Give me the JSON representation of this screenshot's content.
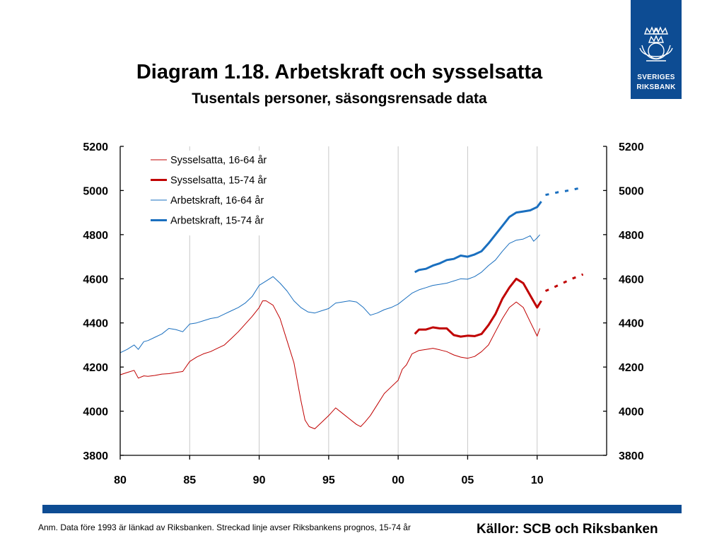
{
  "header": {
    "title": "Diagram 1.18. Arbetskraft och sysselsatta",
    "subtitle": "Tusentals personer, säsongsrensade data"
  },
  "logo": {
    "line1": "SVERIGES",
    "line2": "RIKSBANK"
  },
  "colors": {
    "brand_blue": "#0d4c93",
    "red": "#c00000",
    "blue": "#1a6fbf"
  },
  "footer": {
    "note": "Anm. Data före 1993 är länkad av Riksbanken. Streckad linje avser Riksbankens prognos, 15-74 år",
    "source": "Källor: SCB och Riksbanken"
  },
  "chart_data": {
    "type": "line",
    "title": "Diagram 1.18. Arbetskraft och sysselsatta",
    "subtitle": "Tusentals personer, säsongsrensade data",
    "xlim": [
      1980,
      2015
    ],
    "ylim": [
      3800,
      5200
    ],
    "yticks": [
      3800,
      4000,
      4200,
      4400,
      4600,
      4800,
      5000,
      5200
    ],
    "xticks": [
      {
        "value": 1980,
        "label": "80"
      },
      {
        "value": 1985,
        "label": "85"
      },
      {
        "value": 1990,
        "label": "90"
      },
      {
        "value": 1995,
        "label": "95"
      },
      {
        "value": 2000,
        "label": "00"
      },
      {
        "value": 2005,
        "label": "05"
      },
      {
        "value": 2010,
        "label": "10"
      }
    ],
    "grid": "vertical",
    "legend_position": "top-left",
    "series": [
      {
        "name": "Sysselsatta, 16-64 år",
        "color": "#c00000",
        "width": 1,
        "style": "solid",
        "points": [
          [
            1980,
            4165
          ],
          [
            1980.5,
            4175
          ],
          [
            1981,
            4185
          ],
          [
            1981.3,
            4150
          ],
          [
            1981.7,
            4160
          ],
          [
            1982,
            4158
          ],
          [
            1982.5,
            4162
          ],
          [
            1983,
            4168
          ],
          [
            1983.5,
            4170
          ],
          [
            1984,
            4175
          ],
          [
            1984.5,
            4180
          ],
          [
            1985,
            4225
          ],
          [
            1985.5,
            4245
          ],
          [
            1986,
            4260
          ],
          [
            1986.5,
            4270
          ],
          [
            1987,
            4285
          ],
          [
            1987.5,
            4300
          ],
          [
            1988,
            4330
          ],
          [
            1988.5,
            4360
          ],
          [
            1989,
            4395
          ],
          [
            1989.5,
            4430
          ],
          [
            1990,
            4470
          ],
          [
            1990.25,
            4500
          ],
          [
            1990.5,
            4500
          ],
          [
            1991,
            4480
          ],
          [
            1991.5,
            4420
          ],
          [
            1992,
            4320
          ],
          [
            1992.5,
            4220
          ],
          [
            1993,
            4050
          ],
          [
            1993.3,
            3960
          ],
          [
            1993.6,
            3930
          ],
          [
            1994,
            3920
          ],
          [
            1994.5,
            3950
          ],
          [
            1995,
            3980
          ],
          [
            1995.5,
            4015
          ],
          [
            1996,
            3990
          ],
          [
            1996.5,
            3965
          ],
          [
            1997,
            3940
          ],
          [
            1997.3,
            3930
          ],
          [
            1997.6,
            3950
          ],
          [
            1998,
            3980
          ],
          [
            1998.5,
            4030
          ],
          [
            1999,
            4080
          ],
          [
            1999.5,
            4110
          ],
          [
            2000,
            4140
          ],
          [
            2000.3,
            4190
          ],
          [
            2000.6,
            4210
          ],
          [
            2001,
            4260
          ],
          [
            2001.5,
            4275
          ],
          [
            2002,
            4280
          ],
          [
            2002.5,
            4285
          ],
          [
            2003,
            4278
          ],
          [
            2003.5,
            4270
          ],
          [
            2004,
            4255
          ],
          [
            2004.5,
            4245
          ],
          [
            2005,
            4240
          ],
          [
            2005.5,
            4248
          ],
          [
            2006,
            4270
          ],
          [
            2006.5,
            4300
          ],
          [
            2007,
            4360
          ],
          [
            2007.5,
            4420
          ],
          [
            2008,
            4470
          ],
          [
            2008.5,
            4495
          ],
          [
            2009,
            4470
          ],
          [
            2009.5,
            4405
          ],
          [
            2010,
            4340
          ],
          [
            2010.2,
            4375
          ]
        ]
      },
      {
        "name": "Sysselsatta, 15-74 år",
        "color": "#c00000",
        "width": 3,
        "style": "solid",
        "points": [
          [
            2001.2,
            4350
          ],
          [
            2001.5,
            4370
          ],
          [
            2002,
            4370
          ],
          [
            2002.5,
            4380
          ],
          [
            2003,
            4375
          ],
          [
            2003.5,
            4375
          ],
          [
            2004,
            4345
          ],
          [
            2004.5,
            4338
          ],
          [
            2005,
            4342
          ],
          [
            2005.5,
            4340
          ],
          [
            2006,
            4350
          ],
          [
            2006.5,
            4390
          ],
          [
            2007,
            4440
          ],
          [
            2007.5,
            4510
          ],
          [
            2008,
            4560
          ],
          [
            2008.5,
            4600
          ],
          [
            2009,
            4580
          ],
          [
            2009.5,
            4525
          ],
          [
            2010,
            4470
          ],
          [
            2010.3,
            4500
          ]
        ]
      },
      {
        "name": "Arbetskraft, 16-64 år",
        "color": "#1a6fbf",
        "width": 1,
        "style": "solid",
        "points": [
          [
            1980,
            4265
          ],
          [
            1980.5,
            4280
          ],
          [
            1981,
            4300
          ],
          [
            1981.3,
            4280
          ],
          [
            1981.7,
            4315
          ],
          [
            1982,
            4320
          ],
          [
            1982.5,
            4335
          ],
          [
            1983,
            4350
          ],
          [
            1983.5,
            4375
          ],
          [
            1984,
            4370
          ],
          [
            1984.5,
            4360
          ],
          [
            1985,
            4395
          ],
          [
            1985.5,
            4400
          ],
          [
            1986,
            4410
          ],
          [
            1986.5,
            4420
          ],
          [
            1987,
            4425
          ],
          [
            1987.5,
            4440
          ],
          [
            1988,
            4455
          ],
          [
            1988.5,
            4470
          ],
          [
            1989,
            4490
          ],
          [
            1989.5,
            4520
          ],
          [
            1990,
            4570
          ],
          [
            1990.5,
            4590
          ],
          [
            1991,
            4610
          ],
          [
            1991.5,
            4580
          ],
          [
            1992,
            4545
          ],
          [
            1992.5,
            4500
          ],
          [
            1993,
            4470
          ],
          [
            1993.5,
            4450
          ],
          [
            1994,
            4445
          ],
          [
            1994.5,
            4455
          ],
          [
            1995,
            4465
          ],
          [
            1995.5,
            4490
          ],
          [
            1996,
            4495
          ],
          [
            1996.5,
            4500
          ],
          [
            1997,
            4495
          ],
          [
            1997.5,
            4470
          ],
          [
            1998,
            4435
          ],
          [
            1998.5,
            4445
          ],
          [
            1999,
            4460
          ],
          [
            1999.5,
            4470
          ],
          [
            2000,
            4485
          ],
          [
            2000.5,
            4510
          ],
          [
            2001,
            4535
          ],
          [
            2001.5,
            4550
          ],
          [
            2002,
            4560
          ],
          [
            2002.5,
            4570
          ],
          [
            2003,
            4575
          ],
          [
            2003.5,
            4580
          ],
          [
            2004,
            4590
          ],
          [
            2004.5,
            4600
          ],
          [
            2005,
            4598
          ],
          [
            2005.5,
            4610
          ],
          [
            2006,
            4630
          ],
          [
            2006.5,
            4660
          ],
          [
            2007,
            4685
          ],
          [
            2007.5,
            4725
          ],
          [
            2008,
            4760
          ],
          [
            2008.5,
            4775
          ],
          [
            2009,
            4780
          ],
          [
            2009.5,
            4795
          ],
          [
            2009.75,
            4770
          ],
          [
            2010,
            4785
          ],
          [
            2010.2,
            4800
          ]
        ]
      },
      {
        "name": "Arbetskraft, 15-74 år",
        "color": "#1a6fbf",
        "width": 3,
        "style": "solid",
        "points": [
          [
            2001.2,
            4630
          ],
          [
            2001.5,
            4640
          ],
          [
            2002,
            4645
          ],
          [
            2002.5,
            4660
          ],
          [
            2003,
            4670
          ],
          [
            2003.5,
            4685
          ],
          [
            2004,
            4690
          ],
          [
            2004.5,
            4705
          ],
          [
            2005,
            4700
          ],
          [
            2005.5,
            4710
          ],
          [
            2006,
            4725
          ],
          [
            2006.5,
            4760
          ],
          [
            2007,
            4800
          ],
          [
            2007.5,
            4840
          ],
          [
            2008,
            4880
          ],
          [
            2008.5,
            4900
          ],
          [
            2009,
            4905
          ],
          [
            2009.5,
            4910
          ],
          [
            2010,
            4925
          ],
          [
            2010.3,
            4950
          ]
        ]
      },
      {
        "name": "Sysselsatta, 15-74 år – prognos",
        "color": "#c00000",
        "width": 3,
        "style": "dashed",
        "points": [
          [
            2010.6,
            4545
          ],
          [
            2011,
            4555
          ],
          [
            2011.5,
            4570
          ],
          [
            2012,
            4585
          ],
          [
            2012.5,
            4600
          ],
          [
            2013,
            4612
          ],
          [
            2013.3,
            4620
          ]
        ]
      },
      {
        "name": "Arbetskraft, 15-74 år – prognos",
        "color": "#1a6fbf",
        "width": 3,
        "style": "dashed",
        "points": [
          [
            2010.6,
            4980
          ],
          [
            2011,
            4985
          ],
          [
            2011.5,
            4992
          ],
          [
            2012,
            4997
          ],
          [
            2012.5,
            5003
          ],
          [
            2013,
            5010
          ],
          [
            2013.3,
            5012
          ]
        ]
      }
    ],
    "legend": [
      {
        "label": "Sysselsatta, 16-64 år",
        "color": "#c00000",
        "width": 1
      },
      {
        "label": "Sysselsatta, 15-74 år",
        "color": "#c00000",
        "width": 3
      },
      {
        "label": "Arbetskraft, 16-64 år",
        "color": "#1a6fbf",
        "width": 1
      },
      {
        "label": "Arbetskraft, 15-74 år",
        "color": "#1a6fbf",
        "width": 3
      }
    ]
  }
}
